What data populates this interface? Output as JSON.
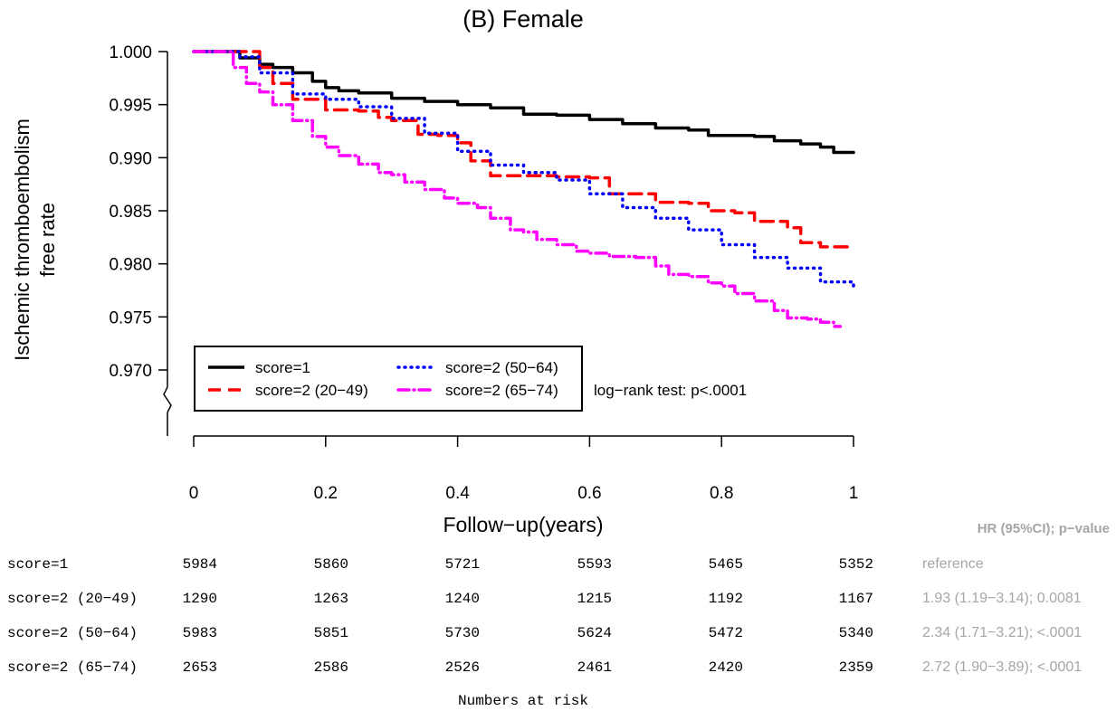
{
  "chart_data": {
    "type": "line",
    "title": "(B) Female",
    "xlabel": "Follow−up(years)",
    "ylabel": [
      "Ischemic thromboembolism",
      "free rate"
    ],
    "xlim": [
      0,
      1
    ],
    "ylim": [
      0.97,
      1.0
    ],
    "x_ticks": [
      "0",
      "0.2",
      "0.4",
      "0.6",
      "0.8",
      "1"
    ],
    "y_ticks": [
      "0.970",
      "0.975",
      "0.980",
      "0.985",
      "0.990",
      "0.995",
      "1.000"
    ],
    "axis_break": true,
    "grid": false,
    "legend_position": "bottom-left",
    "annotation": "log−rank test: p<.0001",
    "series": [
      {
        "name": "score=1",
        "color": "#000000",
        "dash": "solid",
        "points": [
          [
            0,
            1.0
          ],
          [
            0.05,
            1.0
          ],
          [
            0.07,
            0.9994
          ],
          [
            0.1,
            0.9988
          ],
          [
            0.12,
            0.9985
          ],
          [
            0.15,
            0.998
          ],
          [
            0.18,
            0.9972
          ],
          [
            0.2,
            0.9966
          ],
          [
            0.22,
            0.9963
          ],
          [
            0.25,
            0.9961
          ],
          [
            0.3,
            0.9956
          ],
          [
            0.35,
            0.9953
          ],
          [
            0.4,
            0.995
          ],
          [
            0.45,
            0.9947
          ],
          [
            0.5,
            0.9941
          ],
          [
            0.55,
            0.994
          ],
          [
            0.6,
            0.9936
          ],
          [
            0.65,
            0.9932
          ],
          [
            0.7,
            0.9928
          ],
          [
            0.75,
            0.9926
          ],
          [
            0.78,
            0.9921
          ],
          [
            0.85,
            0.992
          ],
          [
            0.88,
            0.9916
          ],
          [
            0.92,
            0.9913
          ],
          [
            0.95,
            0.991
          ],
          [
            0.97,
            0.9905
          ],
          [
            1.0,
            0.9905
          ]
        ]
      },
      {
        "name": "score=2 (20−49)",
        "color": "#ff0000",
        "dash": "dashed",
        "points": [
          [
            0,
            1.0
          ],
          [
            0.07,
            1.0
          ],
          [
            0.1,
            0.9985
          ],
          [
            0.12,
            0.997
          ],
          [
            0.15,
            0.9955
          ],
          [
            0.2,
            0.9945
          ],
          [
            0.25,
            0.9944
          ],
          [
            0.28,
            0.9938
          ],
          [
            0.3,
            0.9935
          ],
          [
            0.34,
            0.9922
          ],
          [
            0.37,
            0.9921
          ],
          [
            0.4,
            0.9914
          ],
          [
            0.42,
            0.9897
          ],
          [
            0.45,
            0.9883
          ],
          [
            0.52,
            0.9883
          ],
          [
            0.55,
            0.9882
          ],
          [
            0.6,
            0.9881
          ],
          [
            0.63,
            0.9866
          ],
          [
            0.67,
            0.9866
          ],
          [
            0.7,
            0.9858
          ],
          [
            0.75,
            0.9857
          ],
          [
            0.78,
            0.985
          ],
          [
            0.82,
            0.9848
          ],
          [
            0.85,
            0.984
          ],
          [
            0.88,
            0.984
          ],
          [
            0.9,
            0.9834
          ],
          [
            0.92,
            0.982
          ],
          [
            0.95,
            0.9816
          ],
          [
            1.0,
            0.9816
          ]
        ]
      },
      {
        "name": "score=2 (50−64)",
        "color": "#0000ff",
        "dash": "dotted",
        "points": [
          [
            0,
            1.0
          ],
          [
            0.05,
            1.0
          ],
          [
            0.07,
            0.9995
          ],
          [
            0.1,
            0.998
          ],
          [
            0.15,
            0.996
          ],
          [
            0.2,
            0.9955
          ],
          [
            0.25,
            0.9948
          ],
          [
            0.3,
            0.9937
          ],
          [
            0.35,
            0.9923
          ],
          [
            0.4,
            0.9906
          ],
          [
            0.45,
            0.9893
          ],
          [
            0.5,
            0.9886
          ],
          [
            0.55,
            0.9879
          ],
          [
            0.6,
            0.9866
          ],
          [
            0.65,
            0.9853
          ],
          [
            0.7,
            0.9843
          ],
          [
            0.75,
            0.9832
          ],
          [
            0.8,
            0.9818
          ],
          [
            0.85,
            0.9806
          ],
          [
            0.9,
            0.9796
          ],
          [
            0.95,
            0.9783
          ],
          [
            1.0,
            0.9775
          ]
        ]
      },
      {
        "name": "score=2 (65−74)",
        "color": "#ff00ff",
        "dash": "dash-dot",
        "points": [
          [
            0,
            1.0
          ],
          [
            0.04,
            1.0
          ],
          [
            0.06,
            0.9985
          ],
          [
            0.08,
            0.997
          ],
          [
            0.1,
            0.9962
          ],
          [
            0.12,
            0.995
          ],
          [
            0.15,
            0.9935
          ],
          [
            0.18,
            0.992
          ],
          [
            0.2,
            0.991
          ],
          [
            0.22,
            0.9902
          ],
          [
            0.25,
            0.9894
          ],
          [
            0.28,
            0.9886
          ],
          [
            0.3,
            0.9884
          ],
          [
            0.32,
            0.9877
          ],
          [
            0.35,
            0.987
          ],
          [
            0.38,
            0.9862
          ],
          [
            0.4,
            0.9857
          ],
          [
            0.43,
            0.9853
          ],
          [
            0.45,
            0.9843
          ],
          [
            0.48,
            0.9832
          ],
          [
            0.5,
            0.983
          ],
          [
            0.52,
            0.9823
          ],
          [
            0.55,
            0.9818
          ],
          [
            0.58,
            0.9812
          ],
          [
            0.6,
            0.981
          ],
          [
            0.63,
            0.9807
          ],
          [
            0.67,
            0.9806
          ],
          [
            0.7,
            0.9798
          ],
          [
            0.72,
            0.979
          ],
          [
            0.75,
            0.9788
          ],
          [
            0.78,
            0.9782
          ],
          [
            0.8,
            0.9779
          ],
          [
            0.82,
            0.9772
          ],
          [
            0.85,
            0.9765
          ],
          [
            0.88,
            0.9756
          ],
          [
            0.9,
            0.9749
          ],
          [
            0.93,
            0.9748
          ],
          [
            0.95,
            0.9745
          ],
          [
            0.97,
            0.9741
          ],
          [
            0.98,
            0.9741
          ]
        ]
      }
    ]
  },
  "risk_table": {
    "caption": "Numbers at risk",
    "hr_header": "HR (95%CI);   p−value",
    "rows": [
      {
        "label": "score=1",
        "counts": [
          "5984",
          "5860",
          "5721",
          "5593",
          "5465",
          "5352"
        ],
        "hr": "reference"
      },
      {
        "label": "score=2 (20−49)",
        "counts": [
          "1290",
          "1263",
          "1240",
          "1215",
          "1192",
          "1167"
        ],
        "hr": "1.93 (1.19−3.14);  0.0081"
      },
      {
        "label": "score=2 (50−64)",
        "counts": [
          "5983",
          "5851",
          "5730",
          "5624",
          "5472",
          "5340"
        ],
        "hr": "2.34 (1.71−3.21);  <.0001"
      },
      {
        "label": "score=2 (65−74)",
        "counts": [
          "2653",
          "2586",
          "2526",
          "2461",
          "2420",
          "2359"
        ],
        "hr": "2.72 (1.90−3.89);  <.0001"
      }
    ]
  },
  "colors": {
    "text": "#000000",
    "hr_text": "#a6a6a6"
  }
}
